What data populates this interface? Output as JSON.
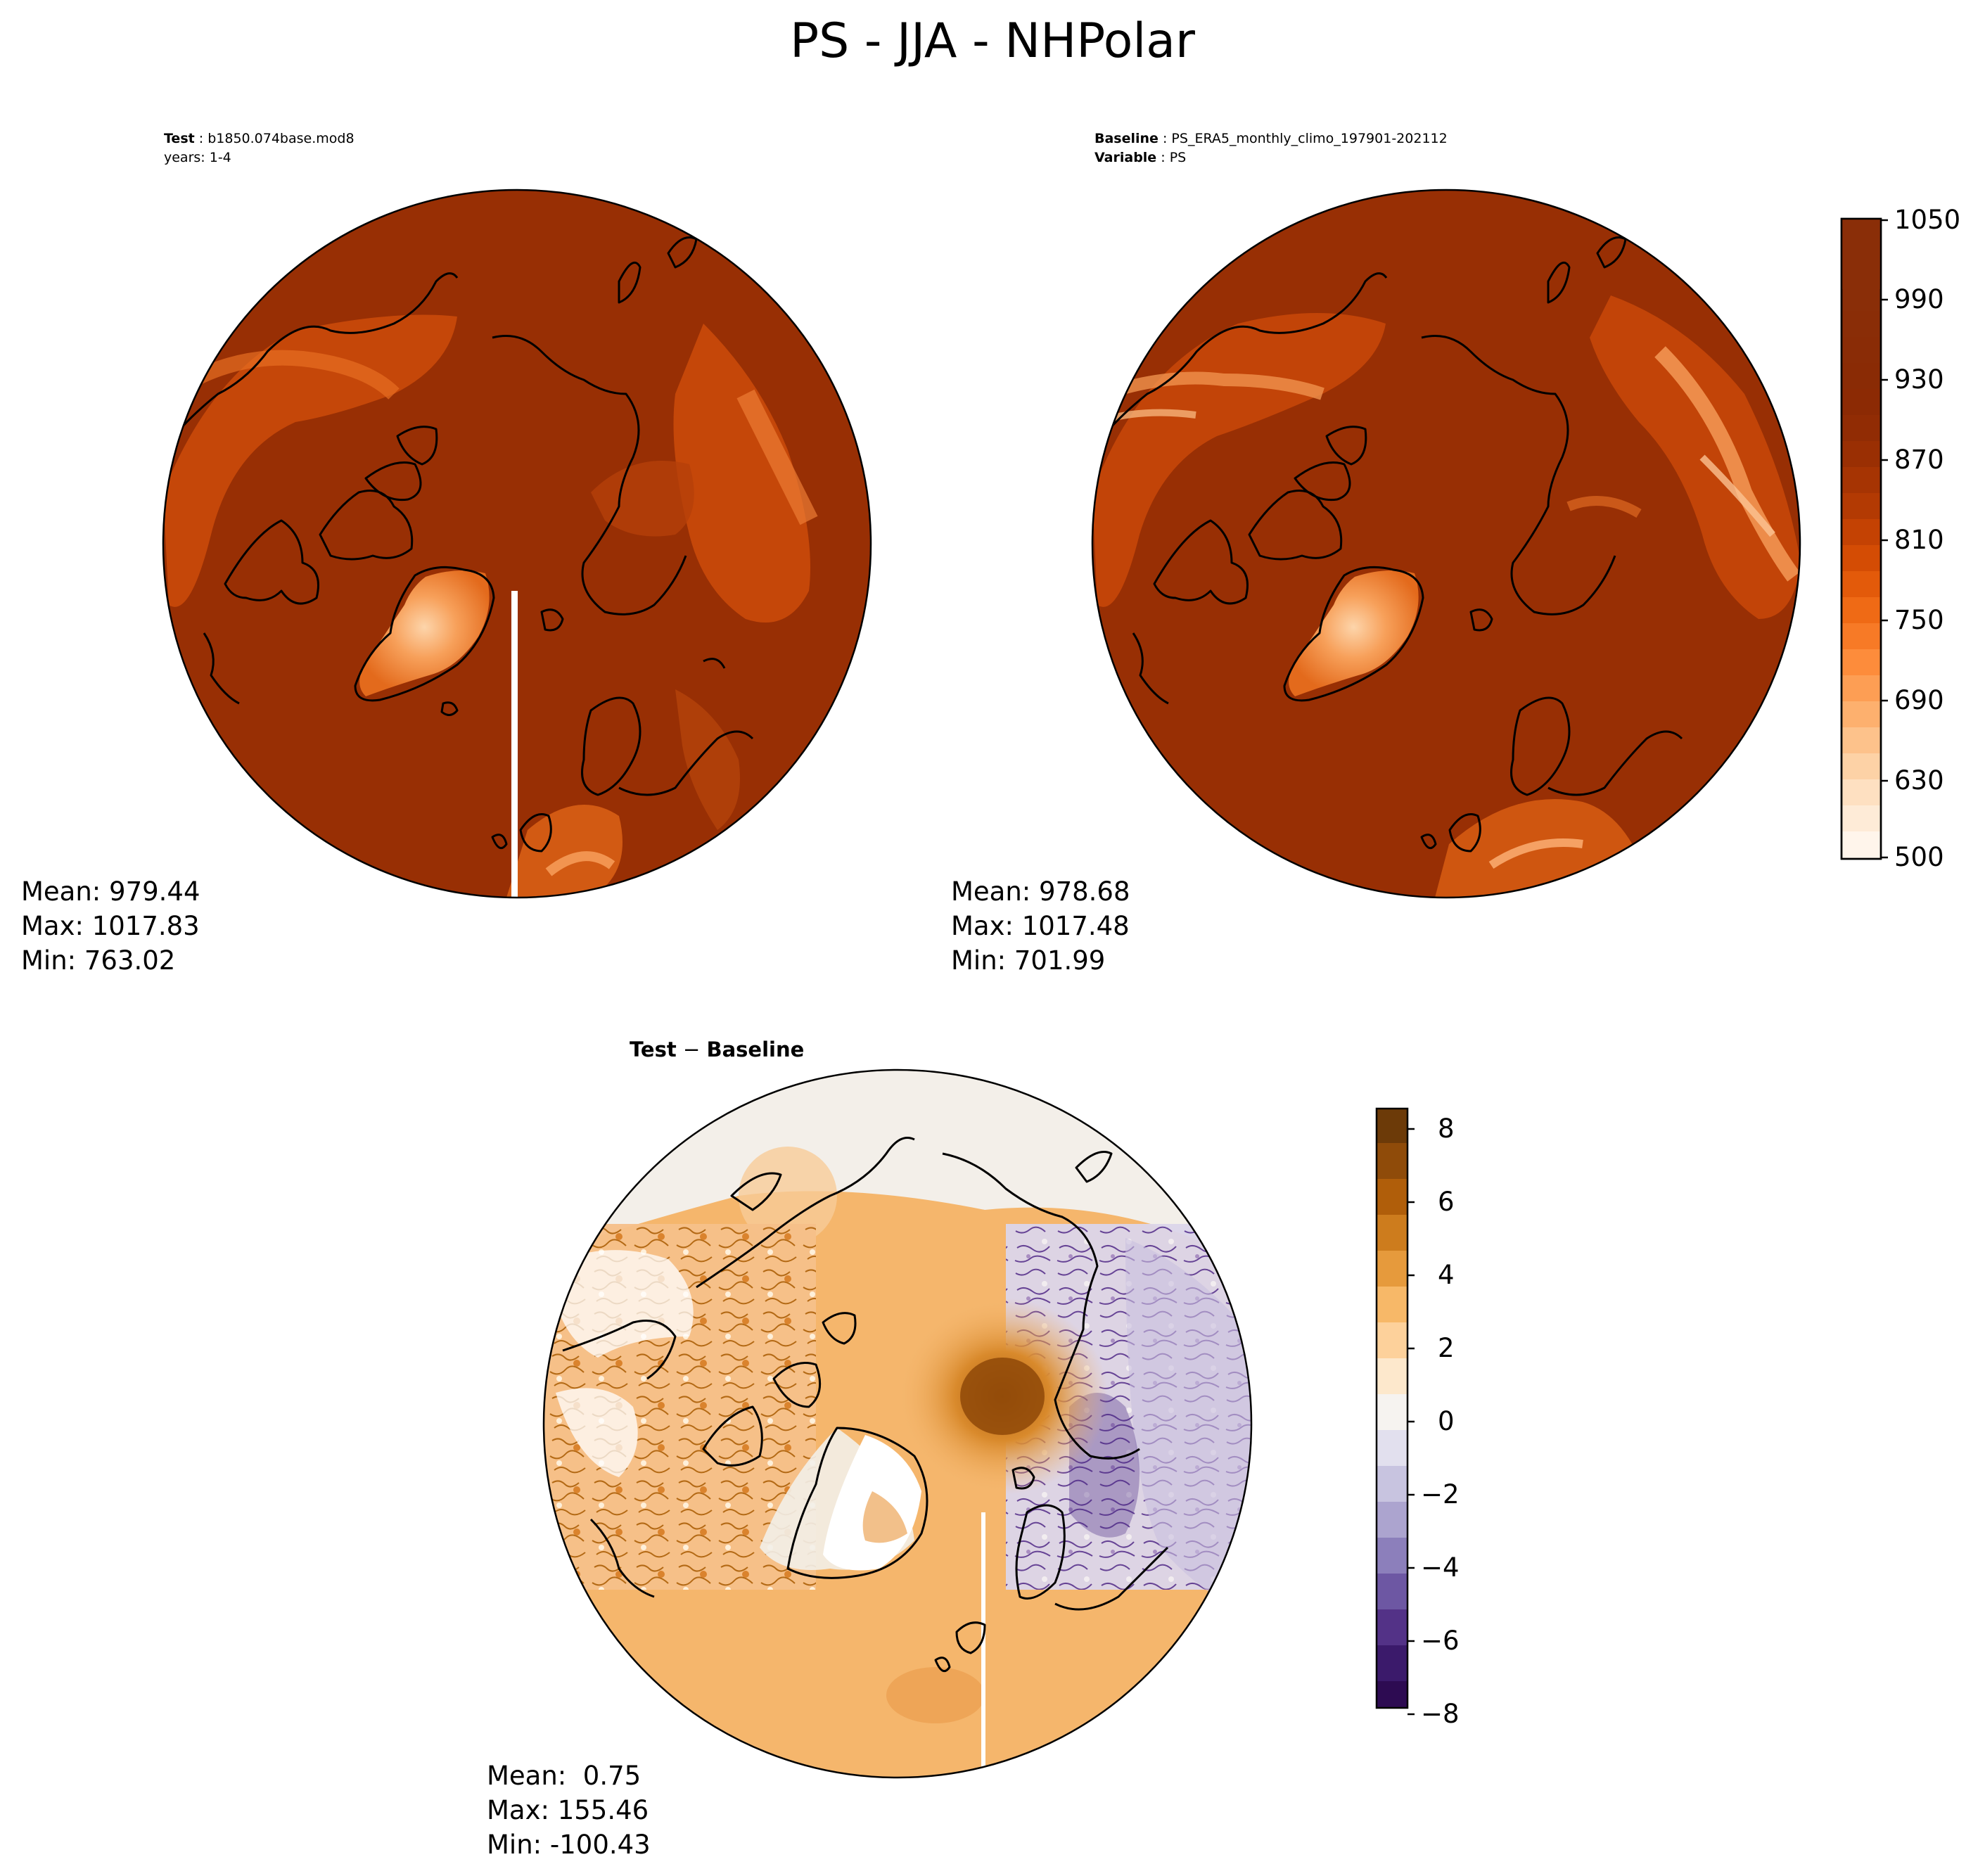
{
  "title": "PS - JJA - NHPolar",
  "panels": {
    "test": {
      "label_key": "Test",
      "label_value": "b1850.074base.mod8",
      "subline": "years: 1-4",
      "stats": {
        "mean": "Mean: 979.44",
        "max": "Max: 1017.83",
        "min": "Min: 763.02"
      }
    },
    "baseline": {
      "label_key": "Baseline",
      "label_value": "PS_ERA5_monthly_climo_197901-202112",
      "var_key": "Variable",
      "var_value": "PS",
      "stats": {
        "mean": "Mean: 978.68",
        "max": "Max: 1017.48",
        "min": "Min: 701.99"
      }
    },
    "diff": {
      "label_key": "Test",
      "label_minus": "−",
      "label_value": "Baseline",
      "stats": {
        "mean": "Mean:  0.75",
        "max": "Max: 155.46",
        "min": "Min: -100.43"
      }
    }
  },
  "colorbars": {
    "main": {
      "colormap": "oranges",
      "ticks": [
        "1050",
        "990",
        "930",
        "870",
        "810",
        "750",
        "690",
        "630",
        "500"
      ],
      "range": [
        500,
        1050
      ]
    },
    "diff": {
      "colormap": "purple-orange diverging",
      "ticks": [
        "8",
        "6",
        "4",
        "2",
        "0",
        "−2",
        "−4",
        "−6",
        "−8"
      ],
      "range": [
        -9,
        8.5
      ]
    }
  },
  "map": {
    "projection": "North polar stereographic",
    "coastlines": true
  }
}
